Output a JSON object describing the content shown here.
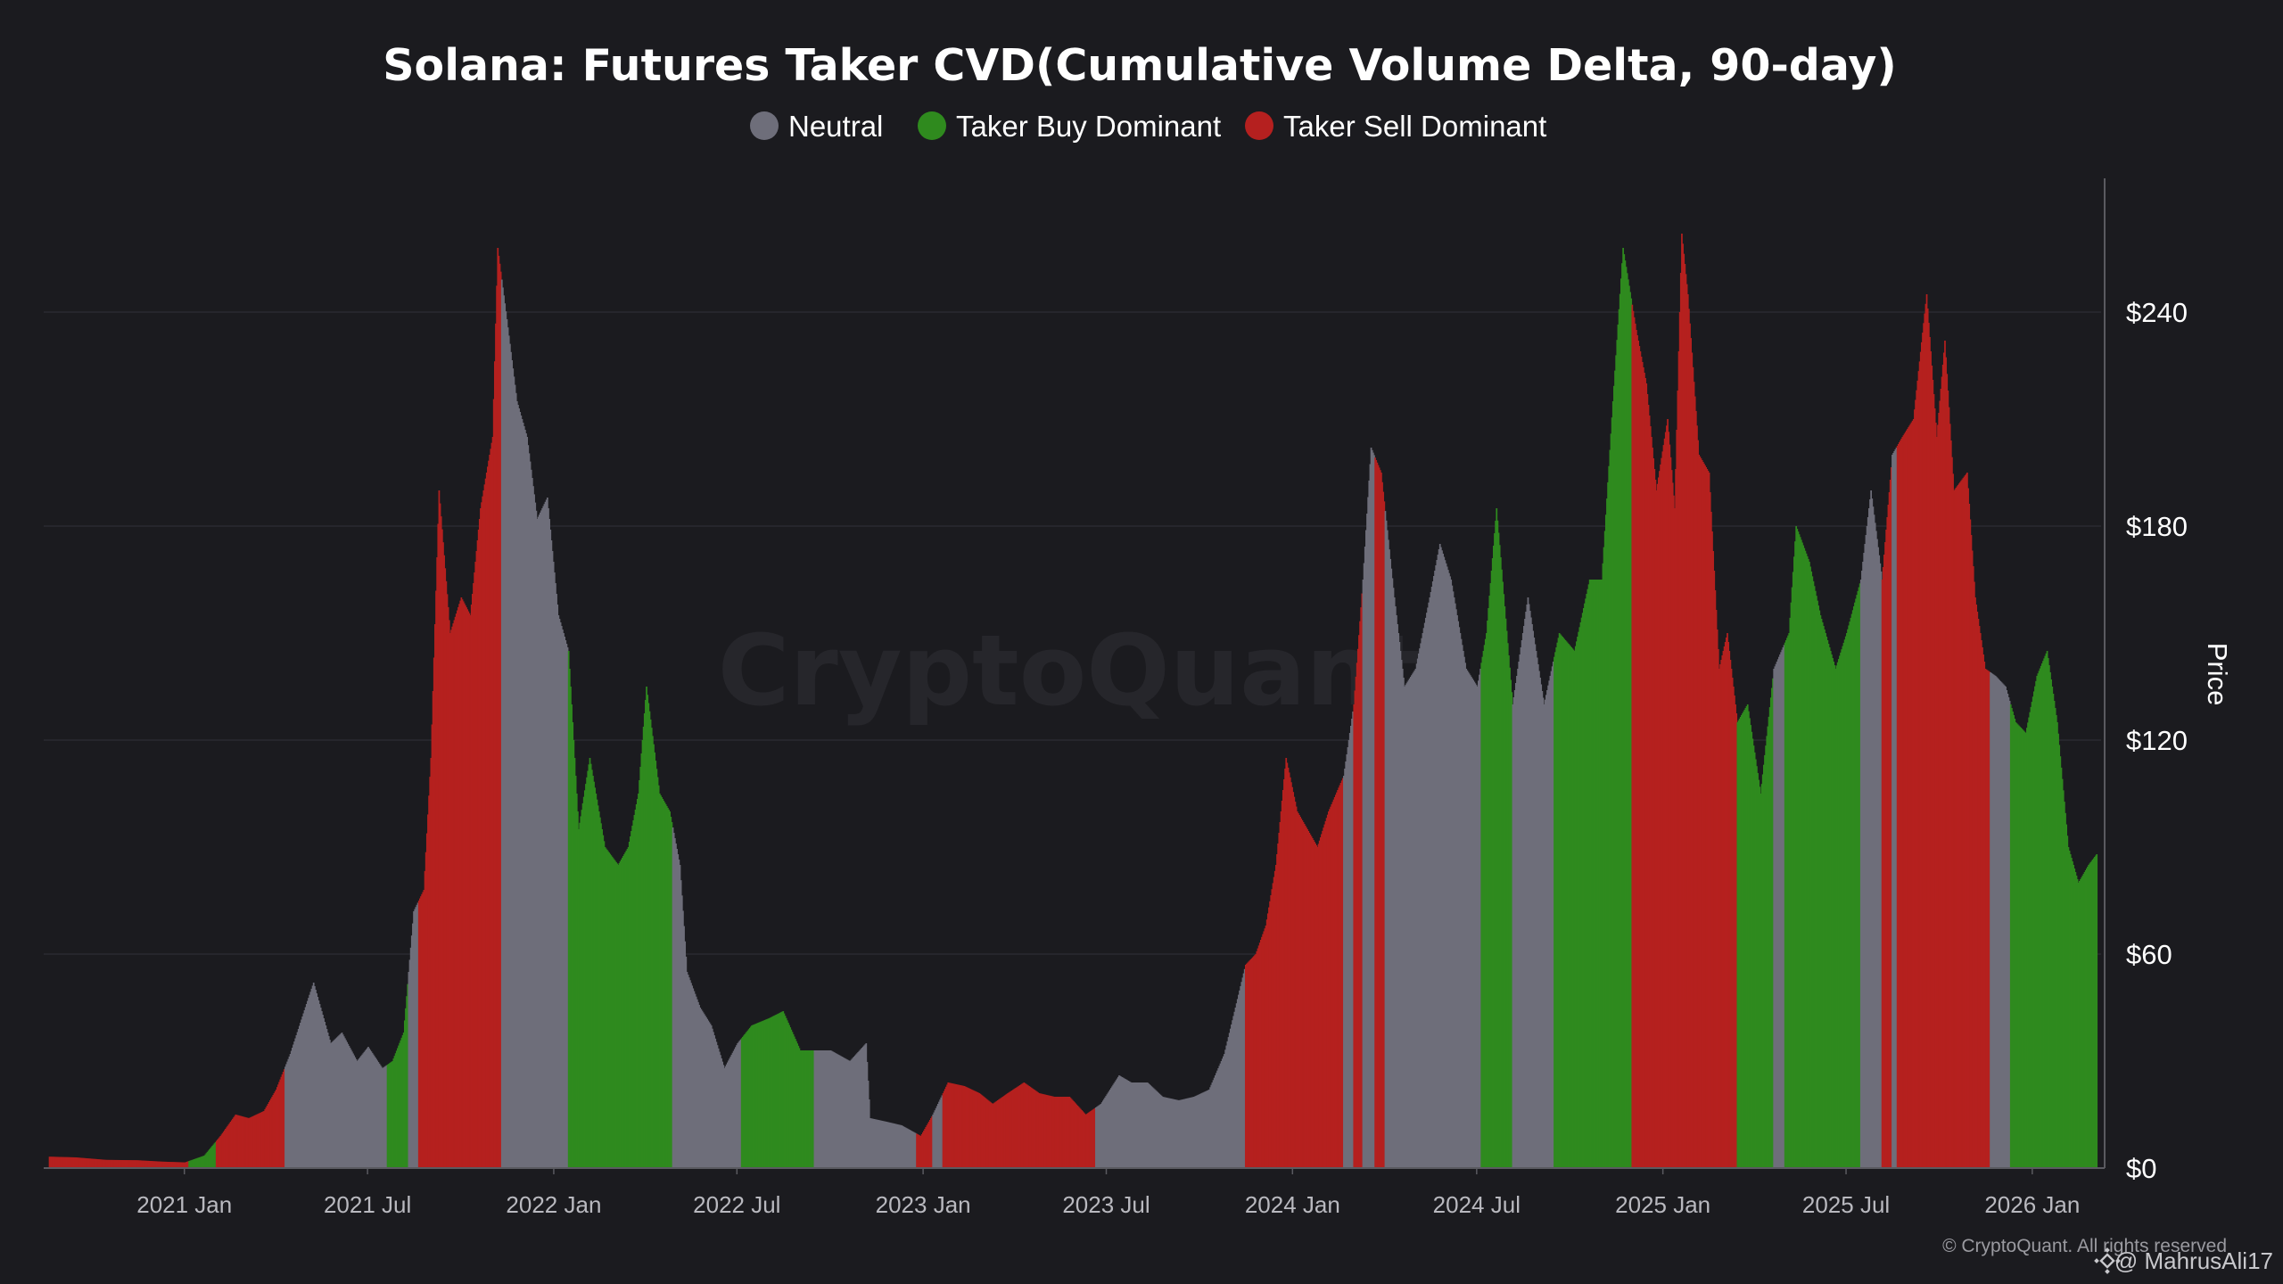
{
  "colors": {
    "background": "#1b1b1f",
    "neutral": "#6e6e7a",
    "buy": "#2f8a1e",
    "sell": "#b5201f",
    "grid": "#2b2b31",
    "axis": "#5a5a60"
  },
  "legend": {
    "neutral": "Neutral",
    "buy": "Taker Buy Dominant",
    "sell": "Taker Sell Dominant"
  },
  "watermark": "CryptoQuant",
  "copyright": "© CryptoQuant. All rights reserved",
  "user_tag": "@ MahrusAli17",
  "chart_data": {
    "type": "area",
    "title": "Solana: Futures Taker CVD(Cumulative Volume Delta, 90-day)",
    "xlabel": "",
    "ylabel": "Price",
    "ylim": [
      0,
      270
    ],
    "xlim": [
      "2020-08-15",
      "2026-03-10"
    ],
    "y_ticks": [
      0,
      60,
      120,
      180,
      240
    ],
    "y_tick_labels": [
      "$0",
      "$60",
      "$120",
      "$180",
      "$240"
    ],
    "x_ticks": [
      "2021-01-01",
      "2021-07-01",
      "2022-01-01",
      "2022-07-01",
      "2023-01-01",
      "2023-07-01",
      "2024-01-01",
      "2024-07-01",
      "2025-01-01",
      "2025-07-01",
      "2026-01-01"
    ],
    "x_tick_labels": [
      "2021 Jan",
      "2021 Jul",
      "2022 Jan",
      "2022 Jul",
      "2023 Jan",
      "2023 Jul",
      "2024 Jan",
      "2024 Jul",
      "2025 Jan",
      "2025 Jul",
      "2026 Jan"
    ],
    "grid": true,
    "legend_position": "top-center",
    "series": [
      {
        "name": "Price",
        "points": [
          [
            "2020-08-20",
            3.2
          ],
          [
            "2020-09-15",
            3.0
          ],
          [
            "2020-10-15",
            2.3
          ],
          [
            "2020-11-15",
            2.2
          ],
          [
            "2020-12-10",
            1.8
          ],
          [
            "2021-01-01",
            1.6
          ],
          [
            "2021-01-20",
            3.5
          ],
          [
            "2021-02-05",
            9
          ],
          [
            "2021-02-20",
            15
          ],
          [
            "2021-03-05",
            14
          ],
          [
            "2021-03-20",
            16
          ],
          [
            "2021-04-01",
            22
          ],
          [
            "2021-04-15",
            32
          ],
          [
            "2021-05-01",
            46
          ],
          [
            "2021-05-08",
            52
          ],
          [
            "2021-05-15",
            45
          ],
          [
            "2021-05-25",
            35
          ],
          [
            "2021-06-05",
            38
          ],
          [
            "2021-06-20",
            30
          ],
          [
            "2021-07-01",
            34
          ],
          [
            "2021-07-15",
            28
          ],
          [
            "2021-07-25",
            30
          ],
          [
            "2021-08-05",
            38
          ],
          [
            "2021-08-15",
            72
          ],
          [
            "2021-08-25",
            78
          ],
          [
            "2021-09-01",
            115
          ],
          [
            "2021-09-09",
            190
          ],
          [
            "2021-09-20",
            150
          ],
          [
            "2021-10-01",
            160
          ],
          [
            "2021-10-10",
            155
          ],
          [
            "2021-10-20",
            185
          ],
          [
            "2021-11-01",
            205
          ],
          [
            "2021-11-06",
            258
          ],
          [
            "2021-11-15",
            238
          ],
          [
            "2021-11-25",
            215
          ],
          [
            "2021-12-05",
            205
          ],
          [
            "2021-12-15",
            182
          ],
          [
            "2021-12-25",
            188
          ],
          [
            "2022-01-05",
            155
          ],
          [
            "2022-01-15",
            145
          ],
          [
            "2022-01-25",
            95
          ],
          [
            "2022-02-05",
            115
          ],
          [
            "2022-02-20",
            90
          ],
          [
            "2022-03-05",
            85
          ],
          [
            "2022-03-15",
            90
          ],
          [
            "2022-03-25",
            105
          ],
          [
            "2022-04-02",
            135
          ],
          [
            "2022-04-15",
            105
          ],
          [
            "2022-04-25",
            100
          ],
          [
            "2022-05-05",
            85
          ],
          [
            "2022-05-12",
            55
          ],
          [
            "2022-05-25",
            45
          ],
          [
            "2022-06-05",
            40
          ],
          [
            "2022-06-18",
            28
          ],
          [
            "2022-07-01",
            35
          ],
          [
            "2022-07-15",
            40
          ],
          [
            "2022-08-01",
            42
          ],
          [
            "2022-08-15",
            44
          ],
          [
            "2022-09-01",
            33
          ],
          [
            "2022-09-15",
            33
          ],
          [
            "2022-10-01",
            33
          ],
          [
            "2022-10-20",
            30
          ],
          [
            "2022-11-05",
            35
          ],
          [
            "2022-11-09",
            14
          ],
          [
            "2022-11-25",
            13
          ],
          [
            "2022-12-10",
            12
          ],
          [
            "2022-12-29",
            9
          ],
          [
            "2023-01-10",
            15
          ],
          [
            "2023-01-25",
            24
          ],
          [
            "2023-02-10",
            23
          ],
          [
            "2023-02-25",
            21
          ],
          [
            "2023-03-10",
            18
          ],
          [
            "2023-03-25",
            21
          ],
          [
            "2023-04-10",
            24
          ],
          [
            "2023-04-25",
            21
          ],
          [
            "2023-05-10",
            20
          ],
          [
            "2023-05-25",
            20
          ],
          [
            "2023-06-10",
            15
          ],
          [
            "2023-06-25",
            18
          ],
          [
            "2023-07-13",
            26
          ],
          [
            "2023-07-25",
            24
          ],
          [
            "2023-08-10",
            24
          ],
          [
            "2023-08-25",
            20
          ],
          [
            "2023-09-10",
            19
          ],
          [
            "2023-09-25",
            20
          ],
          [
            "2023-10-10",
            22
          ],
          [
            "2023-10-25",
            32
          ],
          [
            "2023-11-05",
            45
          ],
          [
            "2023-11-15",
            57
          ],
          [
            "2023-11-25",
            60
          ],
          [
            "2023-12-05",
            68
          ],
          [
            "2023-12-15",
            85
          ],
          [
            "2023-12-25",
            115
          ],
          [
            "2024-01-05",
            100
          ],
          [
            "2024-01-15",
            95
          ],
          [
            "2024-01-25",
            90
          ],
          [
            "2024-02-05",
            100
          ],
          [
            "2024-02-20",
            110
          ],
          [
            "2024-03-01",
            130
          ],
          [
            "2024-03-10",
            165
          ],
          [
            "2024-03-18",
            202
          ],
          [
            "2024-03-28",
            195
          ],
          [
            "2024-04-10",
            160
          ],
          [
            "2024-04-20",
            135
          ],
          [
            "2024-05-01",
            140
          ],
          [
            "2024-05-15",
            160
          ],
          [
            "2024-05-25",
            175
          ],
          [
            "2024-06-05",
            165
          ],
          [
            "2024-06-20",
            140
          ],
          [
            "2024-07-01",
            135
          ],
          [
            "2024-07-10",
            150
          ],
          [
            "2024-07-20",
            185
          ],
          [
            "2024-08-05",
            130
          ],
          [
            "2024-08-20",
            160
          ],
          [
            "2024-09-05",
            130
          ],
          [
            "2024-09-20",
            150
          ],
          [
            "2024-10-05",
            145
          ],
          [
            "2024-10-20",
            165
          ],
          [
            "2024-11-01",
            165
          ],
          [
            "2024-11-12",
            215
          ],
          [
            "2024-11-22",
            258
          ],
          [
            "2024-12-05",
            235
          ],
          [
            "2024-12-15",
            220
          ],
          [
            "2024-12-25",
            190
          ],
          [
            "2025-01-05",
            210
          ],
          [
            "2025-01-12",
            185
          ],
          [
            "2025-01-19",
            262
          ],
          [
            "2025-01-25",
            245
          ],
          [
            "2025-02-05",
            200
          ],
          [
            "2025-02-15",
            195
          ],
          [
            "2025-02-25",
            140
          ],
          [
            "2025-03-05",
            150
          ],
          [
            "2025-03-15",
            125
          ],
          [
            "2025-03-25",
            130
          ],
          [
            "2025-04-07",
            105
          ],
          [
            "2025-04-20",
            140
          ],
          [
            "2025-05-05",
            150
          ],
          [
            "2025-05-12",
            180
          ],
          [
            "2025-05-25",
            170
          ],
          [
            "2025-06-05",
            155
          ],
          [
            "2025-06-20",
            140
          ],
          [
            "2025-07-01",
            150
          ],
          [
            "2025-07-15",
            165
          ],
          [
            "2025-07-25",
            190
          ],
          [
            "2025-08-05",
            165
          ],
          [
            "2025-08-15",
            200
          ],
          [
            "2025-08-25",
            205
          ],
          [
            "2025-09-05",
            210
          ],
          [
            "2025-09-18",
            245
          ],
          [
            "2025-09-28",
            205
          ],
          [
            "2025-10-06",
            232
          ],
          [
            "2025-10-15",
            190
          ],
          [
            "2025-10-28",
            195
          ],
          [
            "2025-11-05",
            160
          ],
          [
            "2025-11-15",
            140
          ],
          [
            "2025-11-25",
            138
          ],
          [
            "2025-12-05",
            135
          ],
          [
            "2025-12-15",
            125
          ],
          [
            "2025-12-25",
            122
          ],
          [
            "2026-01-05",
            138
          ],
          [
            "2026-01-15",
            145
          ],
          [
            "2026-01-25",
            125
          ],
          [
            "2026-02-05",
            90
          ],
          [
            "2026-02-15",
            80
          ],
          [
            "2026-02-25",
            85
          ],
          [
            "2026-03-05",
            88
          ]
        ]
      }
    ],
    "regime_periods": [
      {
        "start": "2020-08-20",
        "end": "2021-01-05",
        "state": "sell"
      },
      {
        "start": "2021-01-05",
        "end": "2021-02-01",
        "state": "buy"
      },
      {
        "start": "2021-02-01",
        "end": "2021-04-10",
        "state": "sell"
      },
      {
        "start": "2021-04-10",
        "end": "2021-07-20",
        "state": "neutral"
      },
      {
        "start": "2021-07-20",
        "end": "2021-08-10",
        "state": "buy"
      },
      {
        "start": "2021-08-10",
        "end": "2021-08-20",
        "state": "neutral"
      },
      {
        "start": "2021-08-20",
        "end": "2021-11-10",
        "state": "sell"
      },
      {
        "start": "2021-11-10",
        "end": "2022-01-15",
        "state": "neutral"
      },
      {
        "start": "2022-01-15",
        "end": "2022-04-28",
        "state": "buy"
      },
      {
        "start": "2022-04-28",
        "end": "2022-07-05",
        "state": "neutral"
      },
      {
        "start": "2022-07-05",
        "end": "2022-09-15",
        "state": "buy"
      },
      {
        "start": "2022-09-15",
        "end": "2022-12-25",
        "state": "neutral"
      },
      {
        "start": "2022-12-25",
        "end": "2023-01-10",
        "state": "sell"
      },
      {
        "start": "2023-01-10",
        "end": "2023-01-20",
        "state": "neutral"
      },
      {
        "start": "2023-01-20",
        "end": "2023-06-20",
        "state": "sell"
      },
      {
        "start": "2023-06-20",
        "end": "2023-11-15",
        "state": "neutral"
      },
      {
        "start": "2023-11-15",
        "end": "2024-02-20",
        "state": "sell"
      },
      {
        "start": "2024-02-20",
        "end": "2024-03-01",
        "state": "neutral"
      },
      {
        "start": "2024-03-01",
        "end": "2024-03-10",
        "state": "sell"
      },
      {
        "start": "2024-03-10",
        "end": "2024-03-22",
        "state": "neutral"
      },
      {
        "start": "2024-03-22",
        "end": "2024-04-01",
        "state": "sell"
      },
      {
        "start": "2024-04-01",
        "end": "2024-07-05",
        "state": "neutral"
      },
      {
        "start": "2024-07-05",
        "end": "2024-08-05",
        "state": "buy"
      },
      {
        "start": "2024-08-05",
        "end": "2024-09-15",
        "state": "neutral"
      },
      {
        "start": "2024-09-15",
        "end": "2024-12-01",
        "state": "buy"
      },
      {
        "start": "2024-12-01",
        "end": "2025-03-15",
        "state": "sell"
      },
      {
        "start": "2025-03-15",
        "end": "2025-04-20",
        "state": "buy"
      },
      {
        "start": "2025-04-20",
        "end": "2025-05-01",
        "state": "neutral"
      },
      {
        "start": "2025-05-01",
        "end": "2025-07-15",
        "state": "buy"
      },
      {
        "start": "2025-07-15",
        "end": "2025-08-05",
        "state": "neutral"
      },
      {
        "start": "2025-08-05",
        "end": "2025-08-15",
        "state": "sell"
      },
      {
        "start": "2025-08-15",
        "end": "2025-08-20",
        "state": "neutral"
      },
      {
        "start": "2025-08-20",
        "end": "2025-11-20",
        "state": "sell"
      },
      {
        "start": "2025-11-20",
        "end": "2025-12-10",
        "state": "neutral"
      },
      {
        "start": "2025-12-10",
        "end": "2026-03-06",
        "state": "buy"
      }
    ]
  }
}
